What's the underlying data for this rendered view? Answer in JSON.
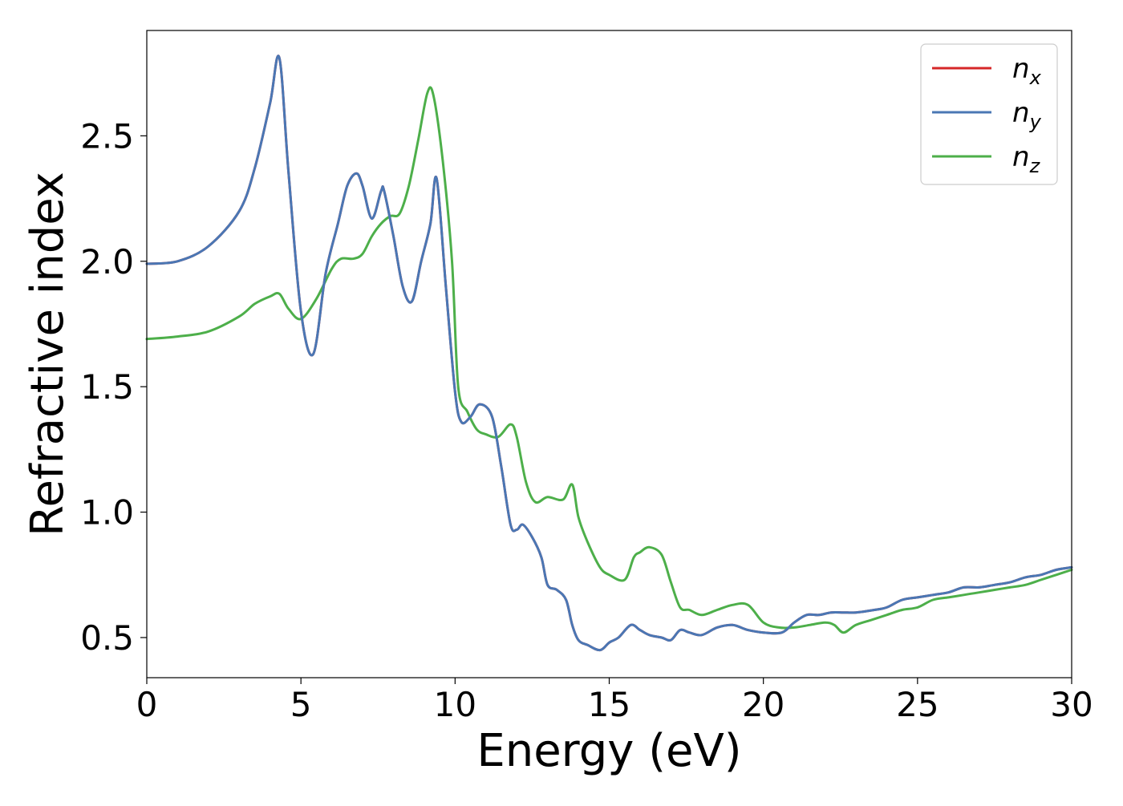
{
  "chart_data": {
    "type": "line",
    "title": "",
    "xlabel": "Energy (eV)",
    "ylabel": "Refractive index",
    "xlim": [
      0,
      30
    ],
    "ylim": [
      0.34,
      2.92
    ],
    "xticks": [
      0,
      5,
      10,
      15,
      20,
      25,
      30
    ],
    "xtick_labels": [
      "0",
      "5",
      "10",
      "15",
      "20",
      "25",
      "30"
    ],
    "yticks": [
      0.5,
      1.0,
      1.5,
      2.0,
      2.5
    ],
    "ytick_labels": [
      "0.5",
      "1.0",
      "1.5",
      "2.0",
      "2.5"
    ],
    "grid": false,
    "legend_position": "top-right",
    "series": [
      {
        "key": "nx",
        "name": "n",
        "subscript": "x",
        "color": "#d62728",
        "x": [
          0,
          1,
          2,
          3,
          3.5,
          4,
          4.3,
          4.6,
          5,
          5.4,
          5.8,
          6.2,
          6.5,
          6.8,
          7,
          7.3,
          7.6,
          7.7,
          8,
          8.3,
          8.6,
          8.9,
          9.2,
          9.4,
          9.7,
          10,
          10.2,
          10.5,
          10.8,
          11.2,
          11.5,
          11.8,
          12,
          12.2,
          12.5,
          12.8,
          13,
          13.3,
          13.6,
          13.8,
          14,
          14.3,
          14.7,
          15,
          15.3,
          15.7,
          16,
          16.3,
          16.7,
          17,
          17.3,
          17.6,
          18,
          18.5,
          19,
          19.5,
          20,
          20.6,
          21,
          21.4,
          21.8,
          22.2,
          22.6,
          23,
          23.6,
          24,
          24.5,
          25,
          25.5,
          26,
          26.5,
          27,
          27.5,
          28,
          28.5,
          29,
          29.5,
          30
        ],
        "y": [
          1.99,
          2.0,
          2.06,
          2.2,
          2.37,
          2.63,
          2.81,
          2.35,
          1.8,
          1.63,
          1.95,
          2.15,
          2.3,
          2.35,
          2.3,
          2.17,
          2.28,
          2.28,
          2.1,
          1.9,
          1.84,
          2.0,
          2.15,
          2.33,
          1.9,
          1.48,
          1.36,
          1.38,
          1.43,
          1.38,
          1.18,
          0.95,
          0.93,
          0.95,
          0.9,
          0.82,
          0.71,
          0.69,
          0.65,
          0.55,
          0.49,
          0.47,
          0.45,
          0.48,
          0.5,
          0.55,
          0.53,
          0.51,
          0.5,
          0.49,
          0.53,
          0.52,
          0.51,
          0.54,
          0.55,
          0.53,
          0.52,
          0.52,
          0.56,
          0.59,
          0.59,
          0.6,
          0.6,
          0.6,
          0.61,
          0.62,
          0.65,
          0.66,
          0.67,
          0.68,
          0.7,
          0.7,
          0.71,
          0.72,
          0.74,
          0.75,
          0.77,
          0.78
        ]
      },
      {
        "key": "ny",
        "name": "n",
        "subscript": "y",
        "color": "#4a77b4",
        "x": [
          0,
          1,
          2,
          3,
          3.5,
          4,
          4.3,
          4.6,
          5,
          5.4,
          5.8,
          6.2,
          6.5,
          6.8,
          7,
          7.3,
          7.6,
          7.7,
          8,
          8.3,
          8.6,
          8.9,
          9.2,
          9.4,
          9.7,
          10,
          10.2,
          10.5,
          10.8,
          11.2,
          11.5,
          11.8,
          12,
          12.2,
          12.5,
          12.8,
          13,
          13.3,
          13.6,
          13.8,
          14,
          14.3,
          14.7,
          15,
          15.3,
          15.7,
          16,
          16.3,
          16.7,
          17,
          17.3,
          17.6,
          18,
          18.5,
          19,
          19.5,
          20,
          20.6,
          21,
          21.4,
          21.8,
          22.2,
          22.6,
          23,
          23.6,
          24,
          24.5,
          25,
          25.5,
          26,
          26.5,
          27,
          27.5,
          28,
          28.5,
          29,
          29.5,
          30
        ],
        "y": [
          1.99,
          2.0,
          2.06,
          2.2,
          2.37,
          2.63,
          2.81,
          2.35,
          1.8,
          1.63,
          1.95,
          2.15,
          2.3,
          2.35,
          2.3,
          2.17,
          2.28,
          2.28,
          2.1,
          1.9,
          1.84,
          2.0,
          2.15,
          2.33,
          1.9,
          1.48,
          1.36,
          1.38,
          1.43,
          1.38,
          1.18,
          0.95,
          0.93,
          0.95,
          0.9,
          0.82,
          0.71,
          0.69,
          0.65,
          0.55,
          0.49,
          0.47,
          0.45,
          0.48,
          0.5,
          0.55,
          0.53,
          0.51,
          0.5,
          0.49,
          0.53,
          0.52,
          0.51,
          0.54,
          0.55,
          0.53,
          0.52,
          0.52,
          0.56,
          0.59,
          0.59,
          0.6,
          0.6,
          0.6,
          0.61,
          0.62,
          0.65,
          0.66,
          0.67,
          0.68,
          0.7,
          0.7,
          0.71,
          0.72,
          0.74,
          0.75,
          0.77,
          0.78
        ]
      },
      {
        "key": "nz",
        "name": "n",
        "subscript": "z",
        "color": "#4daf4a",
        "x": [
          0,
          1,
          2,
          3,
          3.5,
          4,
          4.3,
          4.6,
          5,
          5.5,
          6,
          6.3,
          6.7,
          7,
          7.3,
          7.6,
          7.9,
          8.2,
          8.5,
          8.8,
          9.1,
          9.3,
          9.6,
          9.9,
          10.1,
          10.4,
          10.7,
          11,
          11.4,
          11.8,
          12,
          12.3,
          12.6,
          13,
          13.5,
          13.8,
          14,
          14.3,
          14.7,
          15,
          15.5,
          15.8,
          16,
          16.3,
          16.7,
          17,
          17.3,
          17.6,
          18,
          18.5,
          19,
          19.5,
          20,
          20.5,
          21,
          21.5,
          22,
          22.3,
          22.6,
          23,
          23.5,
          24,
          24.5,
          25,
          25.5,
          26,
          26.5,
          27,
          27.5,
          28,
          28.5,
          29,
          29.5,
          30
        ],
        "y": [
          1.69,
          1.7,
          1.72,
          1.78,
          1.83,
          1.86,
          1.87,
          1.81,
          1.77,
          1.85,
          1.97,
          2.01,
          2.01,
          2.03,
          2.1,
          2.15,
          2.18,
          2.19,
          2.3,
          2.48,
          2.67,
          2.66,
          2.4,
          2.0,
          1.5,
          1.4,
          1.33,
          1.31,
          1.3,
          1.35,
          1.3,
          1.12,
          1.04,
          1.06,
          1.05,
          1.11,
          0.98,
          0.88,
          0.78,
          0.75,
          0.73,
          0.82,
          0.84,
          0.86,
          0.83,
          0.72,
          0.62,
          0.61,
          0.59,
          0.61,
          0.63,
          0.63,
          0.56,
          0.54,
          0.54,
          0.55,
          0.56,
          0.55,
          0.52,
          0.55,
          0.57,
          0.59,
          0.61,
          0.62,
          0.65,
          0.66,
          0.67,
          0.68,
          0.69,
          0.7,
          0.71,
          0.73,
          0.75,
          0.77
        ]
      }
    ]
  }
}
